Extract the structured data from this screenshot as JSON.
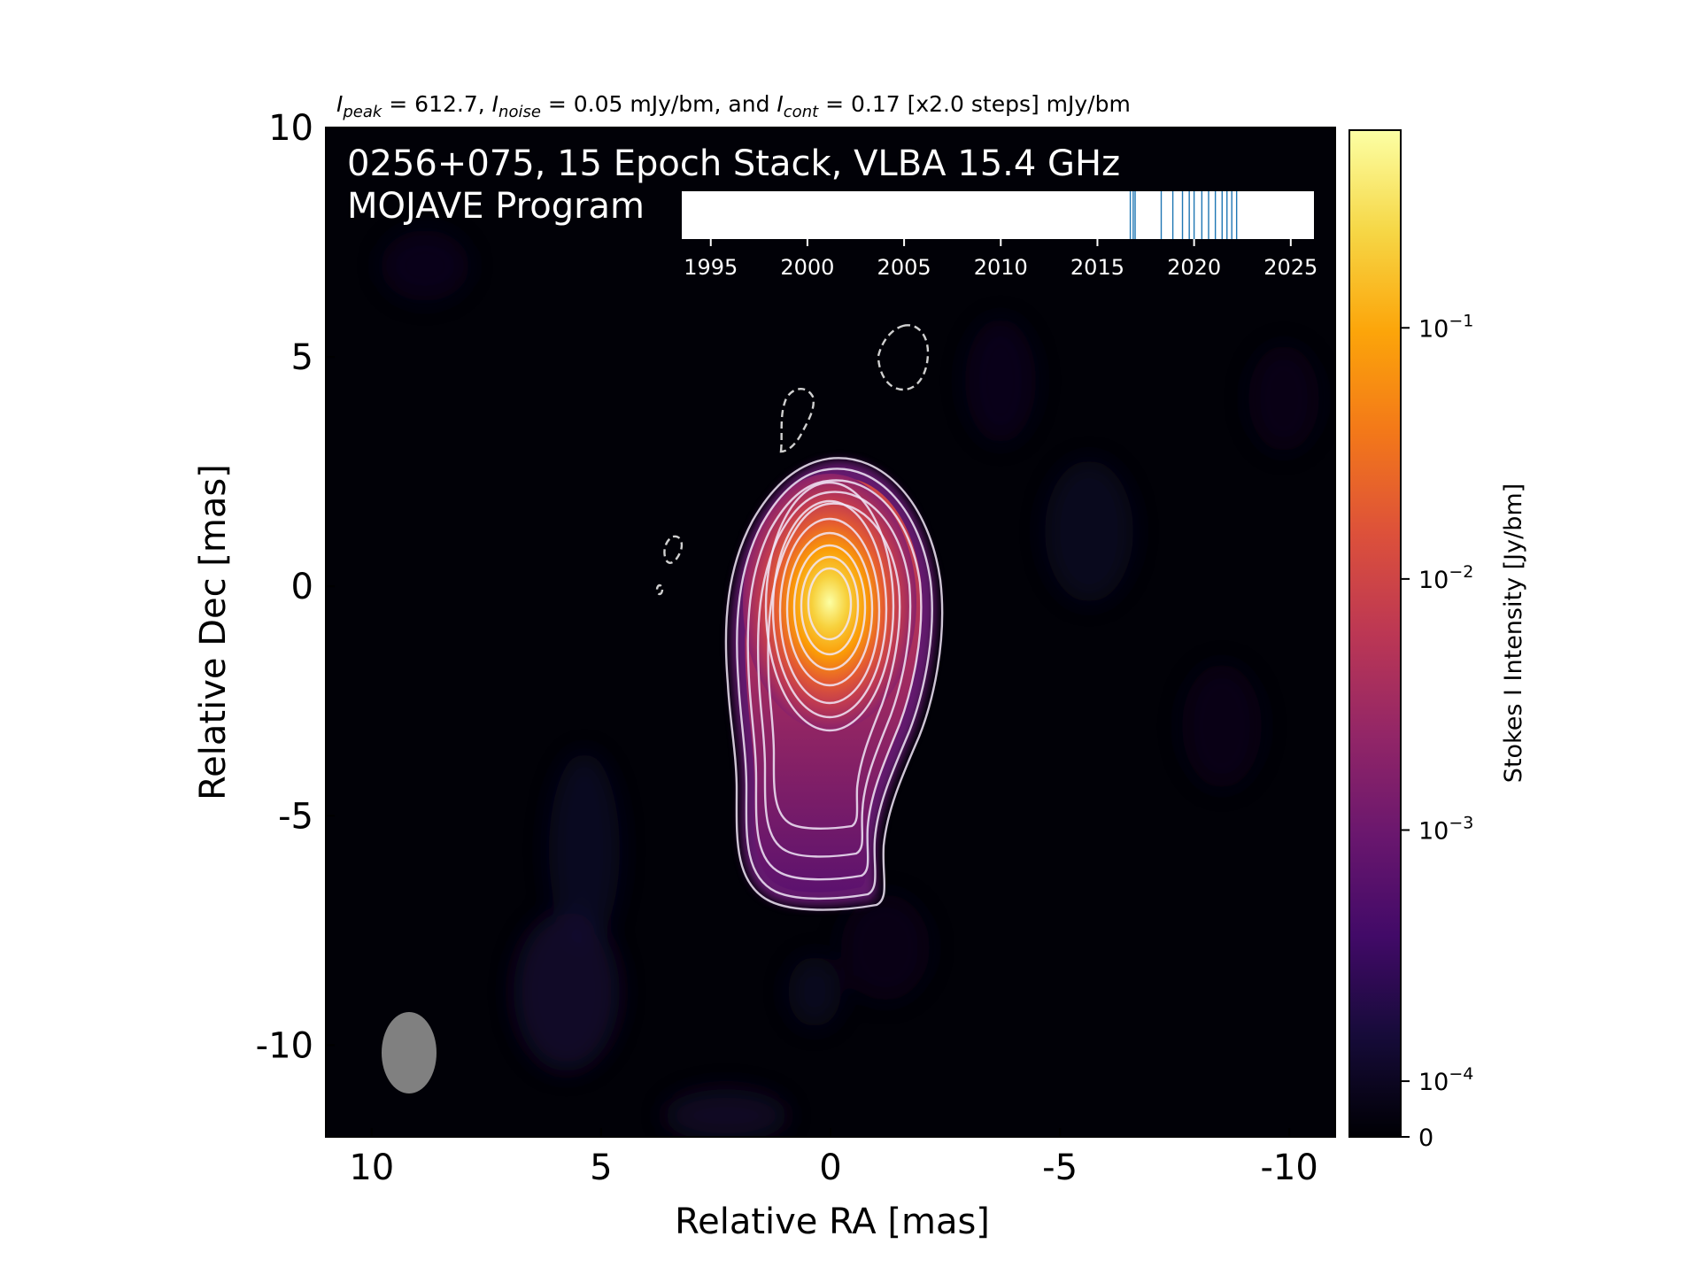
{
  "figure_title_parts": {
    "peak_sym": "I",
    "peak_sub": "peak",
    "peak_rest": " = 612.7, ",
    "noise_sym": "I",
    "noise_sub": "noise",
    "noise_rest": " = 0.05 mJy/bm, and ",
    "cont_sym": "I",
    "cont_sub": "cont",
    "cont_rest": " = 0.17 [x2.0 steps] mJy/bm"
  },
  "overlay_line1": "0256+075, 15 Epoch Stack, VLBA 15.4 GHz",
  "overlay_line2": "MOJAVE Program",
  "chart_data": {
    "type": "heatmap",
    "xlabel": "Relative RA [mas]",
    "ylabel": "Relative Dec [mas]",
    "xlim": [
      11,
      -11
    ],
    "ylim": [
      -12,
      10
    ],
    "x_ticks": [
      10,
      5,
      0,
      -5,
      -10
    ],
    "x_tick_labels": [
      "10",
      "5",
      "0",
      "-5",
      "-10"
    ],
    "y_ticks": [
      10,
      5,
      0,
      -5,
      -10
    ],
    "y_tick_labels": [
      "10",
      "5",
      "0",
      "-5",
      "-10"
    ],
    "source": "0256+075",
    "epochs_stacked": 15,
    "frequency": "15.4 GHz",
    "instrument": "VLBA",
    "program": "MOJAVE Program",
    "peak_intensity": 612.7,
    "noise_mJy_per_beam": 0.05,
    "contour_base_mJy_per_beam": 0.17,
    "contour_step_factor": 2.0,
    "beam": {
      "center_mas": [
        9.1,
        -10.1
      ],
      "major_mas": 1.8,
      "minor_mas": 1.2,
      "pa_deg": 0
    },
    "negative_contour_centers_mas": [
      [
        0.5,
        3.9
      ],
      [
        -1.7,
        5.2
      ],
      [
        3.3,
        1.0
      ],
      [
        3.6,
        0.1
      ]
    ],
    "colorbar": {
      "label": "Stokes I Intensity [Jy/bm]",
      "scale": "log",
      "cmap": "inferno",
      "ticks": [
        0,
        0.0001,
        0.001,
        0.01,
        0.1
      ],
      "tick_labels": [
        {
          "base": "0",
          "exp": ""
        },
        {
          "base": "10",
          "exp": "−4"
        },
        {
          "base": "10",
          "exp": "−3"
        },
        {
          "base": "10",
          "exp": "−2"
        },
        {
          "base": "10",
          "exp": "−1"
        }
      ]
    },
    "epoch_timeline": {
      "xlim": [
        1993.5,
        2026.2
      ],
      "ticks": [
        1995,
        2000,
        2005,
        2010,
        2015,
        2020,
        2025
      ],
      "tick_labels": [
        "1995",
        "2000",
        "2005",
        "2010",
        "2015",
        "2020",
        "2025"
      ],
      "epochs": [
        2016.7,
        2016.85,
        2016.95,
        2018.3,
        2018.9,
        2019.4,
        2019.75,
        2020.0,
        2020.4,
        2020.75,
        2021.1,
        2021.45,
        2021.7,
        2021.95,
        2022.2
      ],
      "line_color": "#1f77b4"
    }
  }
}
